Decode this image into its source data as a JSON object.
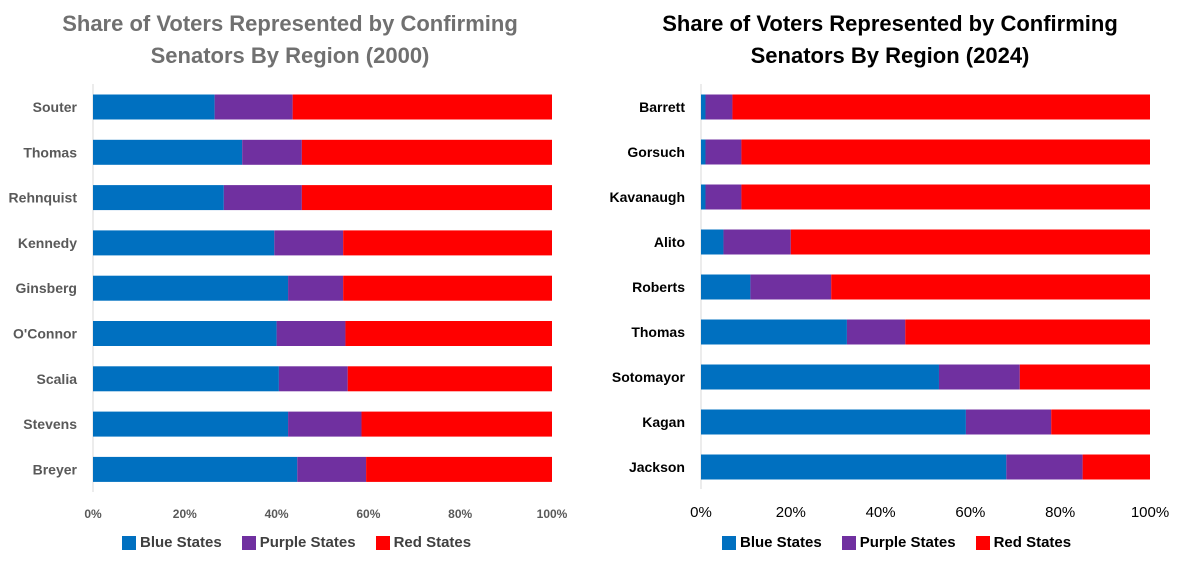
{
  "colors": {
    "blue": "#0070C0",
    "purple": "#7030A0",
    "red": "#FF0000",
    "axis": "#d9d9d9"
  },
  "legend": [
    {
      "label": "Blue States",
      "color": "#0070C0"
    },
    {
      "label": "Purple States",
      "color": "#7030A0"
    },
    {
      "label": "Red States",
      "color": "#FF0000"
    }
  ],
  "chart_data": [
    {
      "type": "bar",
      "orientation": "horizontal",
      "stacked": true,
      "title": "Share of Voters Represented by Confirming Senators By Region (2000)",
      "xlim": [
        0,
        100
      ],
      "x_ticks": [
        "0%",
        "20%",
        "40%",
        "60%",
        "80%",
        "100%"
      ],
      "categories": [
        "Souter",
        "Thomas",
        "Rehnquist",
        "Kennedy",
        "Ginsberg",
        "O'Connor",
        "Scalia",
        "Stevens",
        "Breyer"
      ],
      "series": [
        {
          "name": "Blue States",
          "values": [
            26.5,
            32.5,
            28.5,
            39.5,
            42.5,
            40,
            40.5,
            42.5,
            44.5
          ]
        },
        {
          "name": "Purple States",
          "values": [
            17,
            13,
            17,
            15,
            12,
            15,
            15,
            16,
            15
          ]
        },
        {
          "name": "Red States",
          "values": [
            56.5,
            54.5,
            54.5,
            45.5,
            45.5,
            45,
            44.5,
            41.5,
            40.5
          ]
        }
      ],
      "legend_position": "bottom"
    },
    {
      "type": "bar",
      "orientation": "horizontal",
      "stacked": true,
      "title": "Share of Voters Represented by Confirming Senators By Region (2024)",
      "xlim": [
        0,
        100
      ],
      "x_ticks": [
        "0%",
        "20%",
        "40%",
        "60%",
        "80%",
        "100%"
      ],
      "categories": [
        "Barrett",
        "Gorsuch",
        "Kavanaugh",
        "Alito",
        "Roberts",
        "Thomas",
        "Sotomayor",
        "Kagan",
        "Jackson"
      ],
      "series": [
        {
          "name": "Blue States",
          "values": [
            1,
            1,
            1,
            5,
            11,
            32.5,
            53,
            59,
            68
          ]
        },
        {
          "name": "Purple States",
          "values": [
            6,
            8,
            8,
            15,
            18,
            13,
            18,
            19,
            17
          ]
        },
        {
          "name": "Red States",
          "values": [
            93,
            91,
            91,
            80,
            71,
            54.5,
            29,
            22,
            15
          ]
        }
      ],
      "legend_position": "bottom"
    }
  ]
}
